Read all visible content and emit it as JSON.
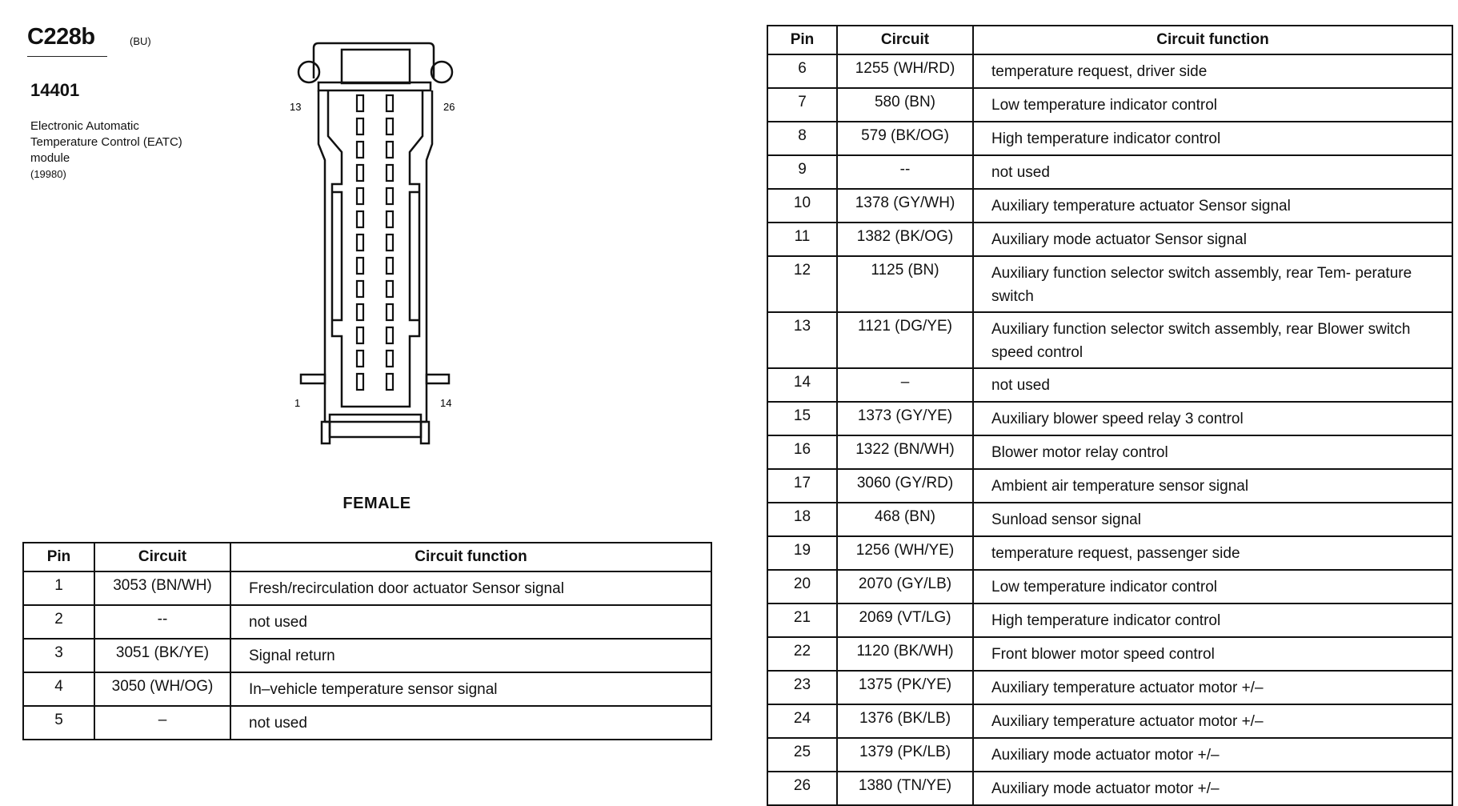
{
  "header": {
    "connector_id": "C228b",
    "connector_color": "(BU)",
    "part_number": "14401",
    "description": "Electronic Automatic Temperature Control (EATC) module",
    "description_code": "(19980)"
  },
  "connector": {
    "pin_labels": {
      "top_left": "13",
      "top_right": "26",
      "bottom_left": "1",
      "bottom_right": "14"
    },
    "gender": "FEMALE",
    "pin_rows": 13,
    "pin_columns": 2
  },
  "tables": {
    "columns": [
      "Pin",
      "Circuit",
      "Circuit function"
    ],
    "left_rows": [
      {
        "pin": "1",
        "circuit": "3053 (BN/WH)",
        "function": "Fresh/recirculation door actuator  Sensor signal"
      },
      {
        "pin": "2",
        "circuit": "--",
        "function": "not used"
      },
      {
        "pin": "3",
        "circuit": "3051 (BK/YE)",
        "function": "Signal return"
      },
      {
        "pin": "4",
        "circuit": "3050 (WH/OG)",
        "function": "In–vehicle temperature sensor  signal"
      },
      {
        "pin": "5",
        "circuit": "–",
        "function": "not used"
      }
    ],
    "right_rows": [
      {
        "pin": "6",
        "circuit": "1255 (WH/RD)",
        "function": "temperature request, driver side"
      },
      {
        "pin": "7",
        "circuit": "580 (BN)",
        "function": "Low temperature indicator control"
      },
      {
        "pin": "8",
        "circuit": "579 (BK/OG)",
        "function": "High temperature indicator control"
      },
      {
        "pin": "9",
        "circuit": "--",
        "function": "not used"
      },
      {
        "pin": "10",
        "circuit": "1378 (GY/WH)",
        "function": "Auxiliary temperature actuator  Sensor signal"
      },
      {
        "pin": "11",
        "circuit": "1382 (BK/OG)",
        "function": "Auxiliary mode actuator  Sensor signal"
      },
      {
        "pin": "12",
        "circuit": "1125 (BN)",
        "function": "Auxiliary function selector switch assembly, rear  Tem- perature switch"
      },
      {
        "pin": "13",
        "circuit": "1121 (DG/YE)",
        "function": "Auxiliary function selector switch assembly, rear  Blower switch speed control"
      },
      {
        "pin": "14",
        "circuit": "–",
        "function": "not used"
      },
      {
        "pin": "15",
        "circuit": "1373 (GY/YE)",
        "function": "Auxiliary blower speed relay 3 control"
      },
      {
        "pin": "16",
        "circuit": "1322 (BN/WH)",
        "function": "Blower motor relay control"
      },
      {
        "pin": "17",
        "circuit": "3060 (GY/RD)",
        "function": "Ambient air temperature sensor  signal"
      },
      {
        "pin": "18",
        "circuit": "468 (BN)",
        "function": "Sunload sensor signal"
      },
      {
        "pin": "19",
        "circuit": "1256 (WH/YE)",
        "function": "temperature request, passenger side"
      },
      {
        "pin": "20",
        "circuit": "2070 (GY/LB)",
        "function": "Low temperature indicator control"
      },
      {
        "pin": "21",
        "circuit": "2069 (VT/LG)",
        "function": "High temperature indicator control"
      },
      {
        "pin": "22",
        "circuit": "1120 (BK/WH)",
        "function": "Front blower motor  speed control"
      },
      {
        "pin": "23",
        "circuit": "1375 (PK/YE)",
        "function": "Auxiliary temperature actuator  motor +/–"
      },
      {
        "pin": "24",
        "circuit": "1376 (BK/LB)",
        "function": "Auxiliary temperature actuator  motor +/–"
      },
      {
        "pin": "25",
        "circuit": "1379 (PK/LB)",
        "function": "Auxiliary mode actuator  motor +/–"
      },
      {
        "pin": "26",
        "circuit": "1380 (TN/YE)",
        "function": "Auxiliary mode actuator  motor +/–"
      }
    ]
  }
}
